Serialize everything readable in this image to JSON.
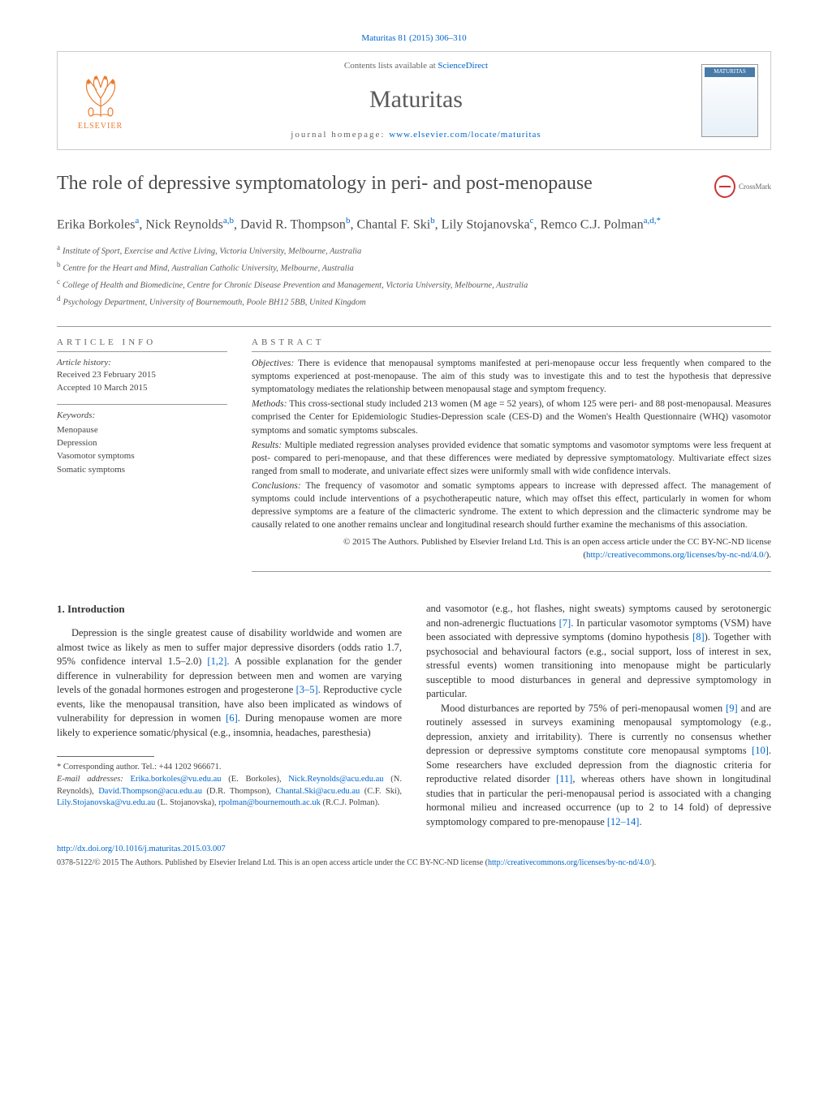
{
  "header": {
    "citation": "Maturitas 81 (2015) 306–310",
    "contents_prefix": "Contents lists available at ",
    "contents_link": "ScienceDirect",
    "journal_name": "Maturitas",
    "homepage_prefix": "journal homepage: ",
    "homepage_link": "www.elsevier.com/locate/maturitas",
    "elsevier_label": "ELSEVIER",
    "cover_label": "MATURITAS",
    "crossmark_label": "CrossMark"
  },
  "article": {
    "title": "The role of depressive symptomatology in peri- and post-menopause",
    "authors_html": "Erika Borkoles<sup>a</sup>, Nick Reynolds<sup>a,b</sup>, David R. Thompson<sup>b</sup>, Chantal F. Ski<sup>b</sup>, Lily Stojanovska<sup>c</sup>, Remco C.J. Polman<sup>a,d,*</sup>",
    "affiliations": [
      {
        "sup": "a",
        "text": "Institute of Sport, Exercise and Active Living, Victoria University, Melbourne, Australia"
      },
      {
        "sup": "b",
        "text": "Centre for the Heart and Mind, Australian Catholic University, Melbourne, Australia"
      },
      {
        "sup": "c",
        "text": "College of Health and Biomedicine, Centre for Chronic Disease Prevention and Management, Victoria University, Melbourne, Australia"
      },
      {
        "sup": "d",
        "text": "Psychology Department, University of Bournemouth, Poole BH12 5BB, United Kingdom"
      }
    ]
  },
  "info": {
    "heading": "ARTICLE INFO",
    "history_label": "Article history:",
    "received": "Received 23 February 2015",
    "accepted": "Accepted 10 March 2015",
    "keywords_label": "Keywords:",
    "keywords": [
      "Menopause",
      "Depression",
      "Vasomotor symptoms",
      "Somatic symptoms"
    ]
  },
  "abstract": {
    "heading": "ABSTRACT",
    "objectives_label": "Objectives:",
    "objectives": " There is evidence that menopausal symptoms manifested at peri-menopause occur less frequently when compared to the symptoms experienced at post-menopause. The aim of this study was to investigate this and to test the hypothesis that depressive symptomatology mediates the relationship between menopausal stage and symptom frequency.",
    "methods_label": "Methods:",
    "methods": " This cross-sectional study included 213 women (M age = 52 years), of whom 125 were peri- and 88 post-menopausal. Measures comprised the Center for Epidemiologic Studies-Depression scale (CES-D) and the Women's Health Questionnaire (WHQ) vasomotor symptoms and somatic symptoms subscales.",
    "results_label": "Results:",
    "results": " Multiple mediated regression analyses provided evidence that somatic symptoms and vasomotor symptoms were less frequent at post- compared to peri-menopause, and that these differences were mediated by depressive symptomatology. Multivariate effect sizes ranged from small to moderate, and univariate effect sizes were uniformly small with wide confidence intervals.",
    "conclusions_label": "Conclusions:",
    "conclusions": " The frequency of vasomotor and somatic symptoms appears to increase with depressed affect. The management of symptoms could include interventions of a psychotherapeutic nature, which may offset this effect, particularly in women for whom depressive symptoms are a feature of the climacteric syndrome. The extent to which depression and the climacteric syndrome may be causally related to one another remains unclear and longitudinal research should further examine the mechanisms of this association.",
    "copyright": "© 2015 The Authors. Published by Elsevier Ireland Ltd. This is an open access article under the CC BY-NC-ND license (",
    "license_link": "http://creativecommons.org/licenses/by-nc-nd/4.0/",
    "license_close": ")."
  },
  "body": {
    "section_heading": "1. Introduction",
    "col1_p1_a": "Depression is the single greatest cause of disability worldwide and women are almost twice as likely as men to suffer major depressive disorders (odds ratio 1.7, 95% confidence interval 1.5–2.0) ",
    "col1_ref1": "[1,2]",
    "col1_p1_b": ". A possible explanation for the gender difference in vulnerability for depression between men and women are varying levels of the gonadal hormones estrogen and progesterone ",
    "col1_ref2": "[3–5]",
    "col1_p1_c": ". Reproductive cycle events, like the menopausal transition, have also been implicated as windows of vulnerability for depression in women ",
    "col1_ref3": "[6]",
    "col1_p1_d": ". During menopause women are more likely to experience somatic/physical (e.g., insomnia, headaches, paresthesia)",
    "col2_p1_a": "and vasomotor (e.g., hot flashes, night sweats) symptoms caused by serotonergic and non-adrenergic fluctuations ",
    "col2_ref1": "[7]",
    "col2_p1_b": ". In particular vasomotor symptoms (VSM) have been associated with depressive symptoms (domino hypothesis ",
    "col2_ref2": "[8]",
    "col2_p1_c": "). Together with psychosocial and behavioural factors (e.g., social support, loss of interest in sex, stressful events) women transitioning into menopause might be particularly susceptible to mood disturbances in general and depressive symptomology in particular.",
    "col2_p2_a": "Mood disturbances are reported by 75% of peri-menopausal women ",
    "col2_ref3": "[9]",
    "col2_p2_b": " and are routinely assessed in surveys examining menopausal symptomology (e.g., depression, anxiety and irritability). There is currently no consensus whether depression or depressive symptoms constitute core menopausal symptoms ",
    "col2_ref4": "[10]",
    "col2_p2_c": ". Some researchers have excluded depression from the diagnostic criteria for reproductive related disorder ",
    "col2_ref5": "[11]",
    "col2_p2_d": ", whereas others have shown in longitudinal studies that in particular the peri-menopausal period is associated with a changing hormonal milieu and increased occurrence (up to 2 to 14 fold) of depressive symptomology compared to pre-menopause ",
    "col2_ref6": "[12–14]",
    "col2_p2_e": "."
  },
  "footnotes": {
    "corresponding": "* Corresponding author. Tel.: +44 1202 966671.",
    "email_label": "E-mail addresses: ",
    "emails": [
      {
        "addr": "Erika.borkoles@vu.edu.au",
        "who": " (E. Borkoles), "
      },
      {
        "addr": "Nick.Reynolds@acu.edu.au",
        "who": " (N. Reynolds), "
      },
      {
        "addr": "David.Thompson@acu.edu.au",
        "who": " (D.R. Thompson), "
      },
      {
        "addr": "Chantal.Ski@acu.edu.au",
        "who": " (C.F. Ski), "
      },
      {
        "addr": "Lily.Stojanovska@vu.edu.au",
        "who": " (L. Stojanovska), "
      },
      {
        "addr": "rpolman@bournemouth.ac.uk",
        "who": " (R.C.J. Polman)."
      }
    ]
  },
  "bottom": {
    "doi": "http://dx.doi.org/10.1016/j.maturitas.2015.03.007",
    "license_text": "0378-5122/© 2015 The Authors. Published by Elsevier Ireland Ltd. This is an open access article under the CC BY-NC-ND license (",
    "license_link": "http://creativecommons.org/licenses/by-nc-nd/4.0/",
    "license_close": ")."
  },
  "colors": {
    "link": "#0066cc",
    "elsevier_orange": "#eb7c2f",
    "text": "#333333",
    "heading_gray": "#5a5a5a",
    "border_gray": "#999999"
  }
}
